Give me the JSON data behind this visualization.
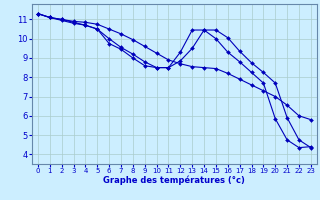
{
  "title": "Graphe des températures (°c)",
  "background_color": "#cceeff",
  "grid_color": "#aacccc",
  "line_color": "#0000bb",
  "xlim": [
    -0.5,
    23.5
  ],
  "ylim": [
    3.5,
    11.8
  ],
  "yticks": [
    4,
    5,
    6,
    7,
    8,
    9,
    10,
    11
  ],
  "xticks": [
    0,
    1,
    2,
    3,
    4,
    5,
    6,
    7,
    8,
    9,
    10,
    11,
    12,
    13,
    14,
    15,
    16,
    17,
    18,
    19,
    20,
    21,
    22,
    23
  ],
  "xticklabels": [
    "0",
    "1",
    "2",
    "3",
    "4",
    "5",
    "6",
    "7",
    "8",
    "9",
    "10",
    "11",
    "12",
    "13",
    "14",
    "15",
    "16",
    "17",
    "18",
    "19",
    "20",
    "21",
    "22",
    "23"
  ],
  "series": [
    {
      "x": [
        0,
        1,
        2,
        3,
        4,
        5,
        6,
        7,
        8,
        9,
        10,
        11,
        12,
        13,
        14,
        15,
        16,
        17,
        18,
        19,
        20,
        21,
        22,
        23
      ],
      "y": [
        11.3,
        11.1,
        11.0,
        10.9,
        10.85,
        10.75,
        10.5,
        10.25,
        9.95,
        9.6,
        9.25,
        8.9,
        8.7,
        8.55,
        8.5,
        8.45,
        8.2,
        7.9,
        7.6,
        7.3,
        7.0,
        6.55,
        6.0,
        5.8
      ]
    },
    {
      "x": [
        0,
        1,
        2,
        3,
        4,
        5,
        6,
        7,
        8,
        9,
        10,
        11,
        12,
        13,
        14,
        15,
        16,
        17,
        18,
        19,
        20,
        21,
        22,
        23
      ],
      "y": [
        11.3,
        11.1,
        11.0,
        10.85,
        10.7,
        10.5,
        10.0,
        9.55,
        9.2,
        8.8,
        8.5,
        8.5,
        8.85,
        9.5,
        10.45,
        10.45,
        10.05,
        9.35,
        8.75,
        8.25,
        7.7,
        5.9,
        4.75,
        4.35
      ]
    },
    {
      "x": [
        0,
        1,
        2,
        3,
        4,
        5,
        6,
        7,
        8,
        9,
        10,
        11,
        12,
        13,
        14,
        15,
        16,
        17,
        18,
        19,
        20,
        21,
        22,
        23
      ],
      "y": [
        11.3,
        11.1,
        10.95,
        10.8,
        10.7,
        10.5,
        9.75,
        9.45,
        9.0,
        8.6,
        8.5,
        8.5,
        9.3,
        10.45,
        10.45,
        10.0,
        9.3,
        8.8,
        8.25,
        7.7,
        5.85,
        4.75,
        4.35,
        4.4
      ]
    }
  ]
}
